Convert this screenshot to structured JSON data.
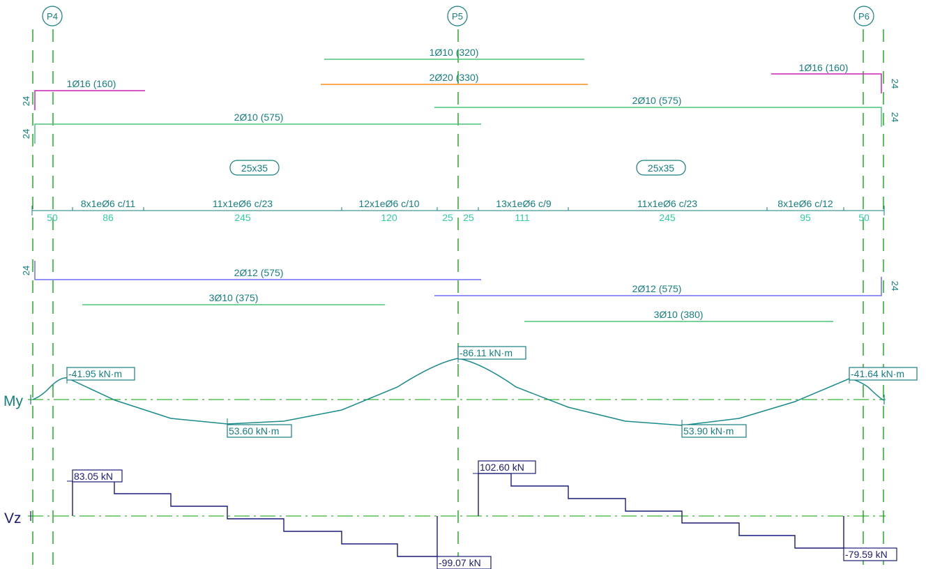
{
  "colors": {
    "axis": "#00a000",
    "teal": "#157f7f",
    "green": "#4cc47a",
    "orange": "#ff8c1a",
    "magenta": "#d21fb8",
    "blue": "#6f6ff0",
    "dimText": "#2ecf9e",
    "moment": "#1a8a8a",
    "shear": "#1a1a78"
  },
  "supports": [
    {
      "id": "p4",
      "label": "P4"
    },
    {
      "id": "p5",
      "label": "P5"
    },
    {
      "id": "p6",
      "label": "P6"
    }
  ],
  "sections": [
    {
      "id": "sec1",
      "label": "25x35"
    },
    {
      "id": "sec2",
      "label": "25x35"
    }
  ],
  "top_bars": [
    {
      "id": "top1",
      "label": "1Ø10 (320)",
      "color": "green"
    },
    {
      "id": "top2",
      "label": "2Ø20 (330)",
      "color": "orange"
    },
    {
      "id": "top3",
      "label": "1Ø16 (160)",
      "color": "magenta"
    },
    {
      "id": "top4",
      "label": "1Ø16 (160)",
      "color": "magenta"
    },
    {
      "id": "top5",
      "label": "2Ø10 (575)",
      "color": "green"
    },
    {
      "id": "top6",
      "label": "2Ø10 (575)",
      "color": "green"
    }
  ],
  "bottom_bars": [
    {
      "id": "bot1",
      "label": "2Ø12 (575)",
      "color": "blue"
    },
    {
      "id": "bot2",
      "label": "2Ø12 (575)",
      "color": "blue"
    },
    {
      "id": "bot3",
      "label": "3Ø10 (375)",
      "color": "green"
    },
    {
      "id": "bot4",
      "label": "3Ø10 (380)",
      "color": "green"
    }
  ],
  "hook_labels": [
    "24",
    "24",
    "24",
    "24",
    "24",
    "24"
  ],
  "stirrups": [
    "8x1eØ6 c/11",
    "11x1eØ6 c/23",
    "12x1eØ6 c/10",
    "13x1eØ6 c/9",
    "11x1eØ6 c/23",
    "8x1eØ6 c/12"
  ],
  "dimensions": [
    "50",
    "86",
    "245",
    "120",
    "25",
    "25",
    "111",
    "245",
    "95",
    "50"
  ],
  "moment": {
    "label": "My",
    "values": [
      "-41.95 kN·m",
      "53.60 kN·m",
      "-86.11 kN·m",
      "53.90 kN·m",
      "-41.64 kN·m"
    ]
  },
  "shear": {
    "label": "Vz",
    "values": [
      "83.05 kN",
      "-99.07 kN",
      "102.60 kN",
      "-79.59 kN"
    ]
  }
}
